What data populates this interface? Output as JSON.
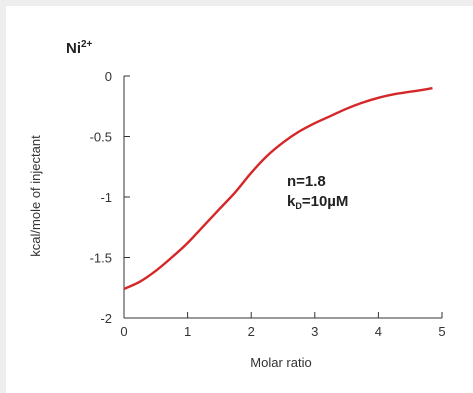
{
  "chart_data": {
    "type": "line",
    "title": "Ni",
    "title_superscript": "2+",
    "xlabel": "Molar ratio",
    "ylabel": "kcal/mole of injectant",
    "xlim": [
      0,
      5
    ],
    "ylim": [
      -2,
      0
    ],
    "x_ticks": [
      "0",
      "1",
      "2",
      "3",
      "4",
      "5"
    ],
    "y_ticks": [
      "0",
      "-0.5",
      "-1",
      "-1.5",
      "-2"
    ],
    "grid": false,
    "line_color": "#d62728",
    "series": [
      {
        "x": [
          0.0,
          0.25,
          0.5,
          0.75,
          1.0,
          1.25,
          1.5,
          1.75,
          2.0,
          2.25,
          2.5,
          2.75,
          3.0,
          3.25,
          3.5,
          3.75,
          4.0,
          4.25,
          4.5,
          4.75,
          4.85
        ],
        "y": [
          -1.76,
          -1.7,
          -1.61,
          -1.5,
          -1.38,
          -1.24,
          -1.1,
          -0.96,
          -0.8,
          -0.66,
          -0.55,
          -0.46,
          -0.39,
          -0.33,
          -0.27,
          -0.22,
          -0.18,
          -0.15,
          -0.13,
          -0.11,
          -0.1
        ]
      }
    ],
    "annotations": {
      "n_text": "n=1.8",
      "kd_k": "k",
      "kd_sub": "D",
      "kd_value": "=10µM"
    }
  }
}
